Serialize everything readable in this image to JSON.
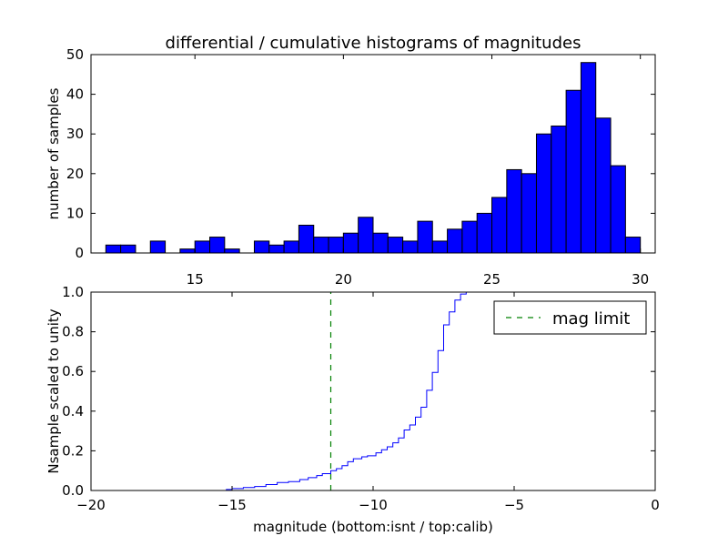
{
  "chart_data": [
    {
      "type": "bar",
      "title": "differential / cumulative histograms of magnitudes",
      "xlabel": "",
      "ylabel": "number of samples",
      "bar_color": "#0000ff",
      "edge_color": "#000000",
      "xlim": [
        11.5,
        30.5
      ],
      "ylim": [
        0,
        50
      ],
      "x_ticks": [
        15,
        20,
        25,
        30
      ],
      "x_tick_labels": [
        "15",
        "20",
        "25",
        "30"
      ],
      "x_tick_position": "top-of-lower-panel",
      "y_ticks": [
        0,
        10,
        20,
        30,
        40,
        50
      ],
      "y_tick_labels": [
        "0",
        "10",
        "20",
        "30",
        "40",
        "50"
      ],
      "bin_start": 12.0,
      "bin_width": 0.5,
      "values": [
        2,
        2,
        0,
        3,
        0,
        1,
        3,
        4,
        1,
        0,
        3,
        2,
        3,
        7,
        4,
        4,
        5,
        9,
        5,
        4,
        3,
        8,
        3,
        6,
        8,
        10,
        14,
        21,
        20,
        30,
        32,
        41,
        48,
        34,
        22,
        4
      ]
    },
    {
      "type": "line",
      "drawstyle": "steps",
      "xlabel": "magnitude (bottom:isnt / top:calib)",
      "ylabel": "Nsample scaled to unity",
      "line_color": "#0000ff",
      "xlim": [
        -20,
        0
      ],
      "ylim": [
        0,
        1.0
      ],
      "x_ticks": [
        -20,
        -15,
        -10,
        -5,
        0
      ],
      "x_tick_labels": [
        "−20",
        "−15",
        "−10",
        "−5",
        "0"
      ],
      "y_ticks": [
        0,
        0.2,
        0.4,
        0.6,
        0.8,
        1.0
      ],
      "y_tick_labels": [
        "0.0",
        "0.2",
        "0.4",
        "0.6",
        "0.8",
        "1.0"
      ],
      "series": [
        {
          "x": [
            -20.0,
            -15.2,
            -15.0,
            -14.6,
            -14.2,
            -13.8,
            -13.4,
            -13.0,
            -12.6,
            -12.3,
            -12.0,
            -11.8,
            -11.5,
            -11.3,
            -11.1,
            -10.9,
            -10.7,
            -10.4,
            -10.2,
            -9.9,
            -9.7,
            -9.5,
            -9.3,
            -9.1,
            -8.9,
            -8.7,
            -8.5,
            -8.3,
            -8.1,
            -7.9,
            -7.7,
            -7.5,
            -7.3,
            -7.1,
            -6.9,
            -6.7,
            -6.5,
            0.0
          ],
          "y": [
            0.0,
            0.005,
            0.01,
            0.015,
            0.02,
            0.03,
            0.04,
            0.045,
            0.055,
            0.065,
            0.075,
            0.085,
            0.1,
            0.11,
            0.125,
            0.145,
            0.16,
            0.17,
            0.175,
            0.19,
            0.205,
            0.22,
            0.24,
            0.265,
            0.305,
            0.33,
            0.37,
            0.42,
            0.505,
            0.595,
            0.705,
            0.835,
            0.9,
            0.96,
            0.99,
            1.0,
            1.0,
            1.0
          ]
        },
        {
          "name": "mag limit",
          "style": "dashed",
          "line_color": "#008000",
          "x": [
            -11.5,
            -11.5
          ],
          "y": [
            0.0,
            1.0
          ]
        }
      ],
      "legend": {
        "label": "mag limit",
        "position": "upper-right"
      }
    }
  ]
}
